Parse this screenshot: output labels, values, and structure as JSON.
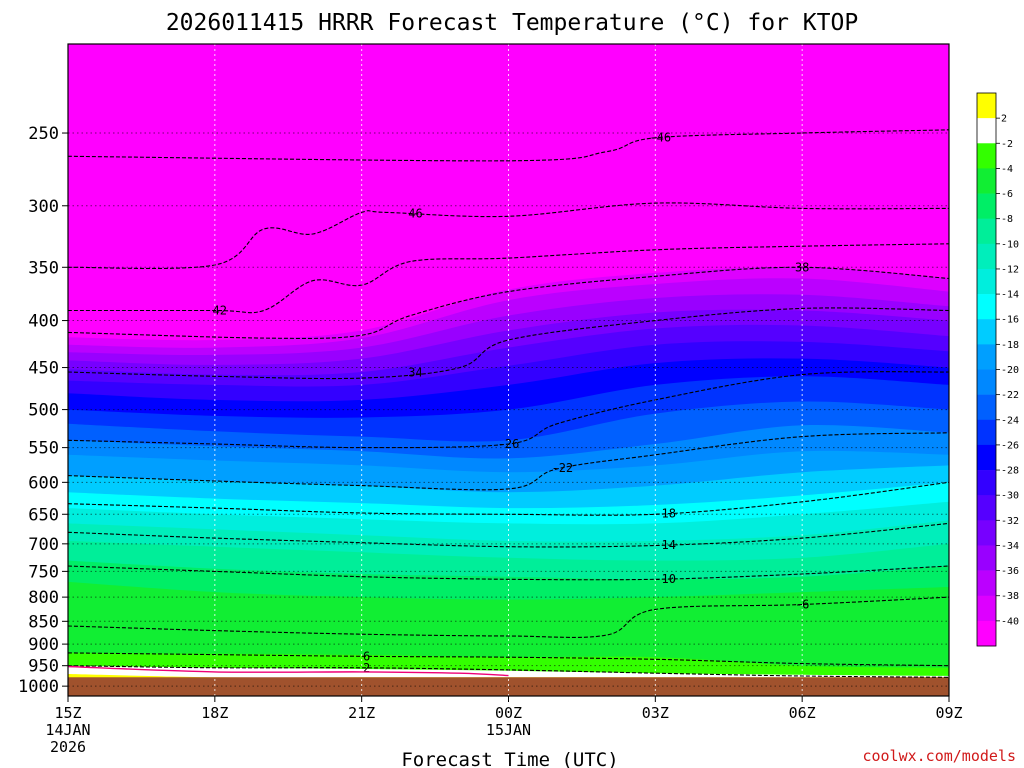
{
  "chart_data": {
    "type": "heatmap",
    "title": "2026011415 HRRR Forecast Temperature (°C) for KTOP",
    "xlabel": "Forecast Time (UTC)",
    "ylabel": "",
    "credit": "coolwx.com/models",
    "credit_color": "#d11a1a",
    "x_ticks": [
      {
        "hour": 0,
        "lines": [
          "15Z",
          "14JAN",
          "2026"
        ]
      },
      {
        "hour": 3,
        "lines": [
          "18Z"
        ]
      },
      {
        "hour": 6,
        "lines": [
          "21Z"
        ]
      },
      {
        "hour": 9,
        "lines": [
          "00Z",
          "15JAN"
        ]
      },
      {
        "hour": 12,
        "lines": [
          "03Z"
        ]
      },
      {
        "hour": 15,
        "lines": [
          "06Z"
        ]
      },
      {
        "hour": 18,
        "lines": [
          "09Z"
        ]
      }
    ],
    "xlim": [
      0,
      18
    ],
    "y_ticks": [
      250,
      300,
      350,
      400,
      450,
      500,
      550,
      600,
      650,
      700,
      750,
      800,
      850,
      900,
      950,
      1000
    ],
    "ylim_hPa": [
      200,
      1025
    ],
    "ground_pressure_hPa": 978,
    "ground_color": "#a0522d",
    "colorbar": {
      "labels": [
        "2",
        "-2",
        "-4",
        "-6",
        "-8",
        "-10",
        "-12",
        "-14",
        "-16",
        "-18",
        "-20",
        "-22",
        "-24",
        "-26",
        "-28",
        "-30",
        "-32",
        "-34",
        "-36",
        "-38",
        "-40"
      ],
      "colors": [
        "#ffff00",
        "#ffffff",
        "#33ff00",
        "#11ee33",
        "#00ee66",
        "#00ee99",
        "#00eebb",
        "#00eedd",
        "#00ffff",
        "#00ccff",
        "#009fff",
        "#0088ff",
        "#0060ff",
        "#0033ff",
        "#0000ff",
        "#3300ff",
        "#5500ff",
        "#7700ff",
        "#9900ff",
        "#bb00ff",
        "#dd00ff",
        "#ff00ff"
      ]
    },
    "fill_levels": [
      {
        "temp": -44,
        "color": "#ff00ff",
        "p": [
          200,
          200,
          200,
          200,
          200,
          200,
          200
        ]
      },
      {
        "temp": -40,
        "color": "#dd00ff",
        "p": [
          417,
          420,
          410,
          370,
          355,
          350,
          360
        ]
      },
      {
        "temp": -38,
        "color": "#bb00ff",
        "p": [
          425,
          428,
          418,
          380,
          365,
          360,
          372
        ]
      },
      {
        "temp": -36,
        "color": "#9900ff",
        "p": [
          433,
          436,
          428,
          395,
          378,
          375,
          386
        ]
      },
      {
        "temp": -34,
        "color": "#7700ff",
        "p": [
          442,
          447,
          440,
          410,
          392,
          390,
          400
        ]
      },
      {
        "temp": -32,
        "color": "#5500ff",
        "p": [
          452,
          458,
          455,
          428,
          408,
          405,
          416
        ]
      },
      {
        "temp": -30,
        "color": "#3300ff",
        "p": [
          465,
          470,
          470,
          448,
          425,
          422,
          432
        ]
      },
      {
        "temp": -28,
        "color": "#0000ff",
        "p": [
          480,
          488,
          488,
          470,
          445,
          440,
          450
        ]
      },
      {
        "temp": -26,
        "color": "#0033ff",
        "p": [
          500,
          508,
          510,
          500,
          470,
          460,
          470
        ]
      },
      {
        "temp": -24,
        "color": "#0060ff",
        "p": [
          518,
          528,
          535,
          540,
          505,
          490,
          500
        ]
      },
      {
        "temp": -22,
        "color": "#0088ff",
        "p": [
          540,
          548,
          555,
          565,
          545,
          520,
          530
        ]
      },
      {
        "temp": -20,
        "color": "#009fff",
        "p": [
          560,
          568,
          575,
          585,
          575,
          555,
          560
        ]
      },
      {
        "temp": -18,
        "color": "#00ccff",
        "p": [
          590,
          598,
          605,
          615,
          605,
          585,
          575
        ]
      },
      {
        "temp": -16,
        "color": "#00ffff",
        "p": [
          615,
          625,
          632,
          640,
          635,
          620,
          600
        ]
      },
      {
        "temp": -14,
        "color": "#00eedd",
        "p": [
          640,
          650,
          658,
          665,
          665,
          650,
          630
        ]
      },
      {
        "temp": -12,
        "color": "#00eebb",
        "p": [
          665,
          675,
          685,
          695,
          695,
          685,
          660
        ]
      },
      {
        "temp": -10,
        "color": "#00ee99",
        "p": [
          695,
          705,
          715,
          725,
          730,
          725,
          700
        ]
      },
      {
        "temp": -8,
        "color": "#00ee66",
        "p": [
          730,
          745,
          755,
          760,
          765,
          760,
          740
        ]
      },
      {
        "temp": -6,
        "color": "#11ee33",
        "p": [
          770,
          790,
          800,
          805,
          800,
          790,
          780
        ]
      },
      {
        "temp": -4,
        "color": "#33ff00",
        "p": [
          920,
          922,
          925,
          930,
          930,
          950,
          955
        ]
      },
      {
        "temp": -2,
        "color": "#ffffff",
        "p": [
          950,
          955,
          958,
          962,
          968,
          972,
          975
        ]
      },
      {
        "temp": 0,
        "color": "#ffff00",
        "p": [
          970,
          978,
          978,
          978,
          978,
          978,
          978
        ]
      }
    ],
    "contour_lines": [
      {
        "label": "46",
        "label_hour": 7.1,
        "hours": [
          0,
          3,
          4,
          5,
          6,
          6.5,
          9,
          12,
          15,
          18
        ],
        "p": [
          350,
          348,
          318,
          322,
          305,
          305,
          308,
          298,
          302,
          302
        ]
      },
      {
        "label": "-46",
        "label_hour": 12.1,
        "hours": [
          0,
          9,
          11,
          12,
          15,
          18
        ],
        "p": [
          265,
          268,
          262,
          253,
          250,
          248
        ]
      },
      {
        "label": "42",
        "label_hour": 3.1,
        "hours": [
          0,
          3,
          4,
          5,
          6,
          7,
          9,
          12,
          15,
          18
        ],
        "p": [
          390,
          390,
          390,
          362,
          366,
          345,
          342,
          335,
          332,
          330
        ]
      },
      {
        "label": "38",
        "label_hour": 15,
        "hours": [
          0,
          4,
          6,
          7,
          9,
          12,
          15,
          18
        ],
        "p": [
          412,
          418,
          415,
          395,
          372,
          358,
          350,
          360
        ]
      },
      {
        "label": "34",
        "label_hour": 7.1,
        "hours": [
          0,
          3,
          6,
          8,
          9,
          12,
          15,
          18
        ],
        "p": [
          455,
          460,
          462,
          450,
          420,
          400,
          388,
          390
        ]
      },
      {
        "label": "-26",
        "label_hour": 9.0,
        "hours": [
          0,
          3,
          6,
          9,
          10,
          12,
          15,
          18
        ],
        "p": [
          540,
          545,
          550,
          545,
          518,
          488,
          458,
          455
        ]
      },
      {
        "label": "-22",
        "label_hour": 10.1,
        "hours": [
          0,
          3,
          6,
          9,
          10,
          12,
          15,
          18
        ],
        "p": [
          590,
          598,
          605,
          610,
          580,
          560,
          535,
          530
        ]
      },
      {
        "label": "-18",
        "label_hour": 12.2,
        "hours": [
          0,
          3,
          6,
          9,
          12,
          15,
          18
        ],
        "p": [
          633,
          640,
          648,
          650,
          650,
          630,
          600
        ]
      },
      {
        "label": "-14",
        "label_hour": 12.2,
        "hours": [
          0,
          3,
          6,
          9,
          12,
          15,
          18
        ],
        "p": [
          680,
          690,
          698,
          705,
          703,
          690,
          665
        ]
      },
      {
        "label": "-10",
        "label_hour": 12.2,
        "hours": [
          0,
          3,
          6,
          9,
          12,
          15,
          18
        ],
        "p": [
          740,
          750,
          760,
          765,
          765,
          755,
          740
        ]
      },
      {
        "label": "-6",
        "label_hour": 15,
        "hours": [
          0,
          3,
          6,
          9,
          11,
          12,
          15,
          18
        ],
        "p": [
          860,
          870,
          878,
          882,
          880,
          825,
          815,
          800
        ]
      },
      {
        "label": "6",
        "label_hour": 6.1,
        "hours": [
          0,
          3,
          6,
          9,
          12,
          15,
          18
        ],
        "p": [
          920,
          924,
          928,
          930,
          935,
          945,
          950
        ]
      },
      {
        "label": "2",
        "label_hour": 6.1,
        "hours": [
          0,
          3,
          6,
          9,
          12,
          15,
          18
        ],
        "p": [
          950,
          955,
          955,
          960,
          968,
          975,
          978
        ]
      }
    ],
    "freezing_line": {
      "hours": [
        0,
        3,
        6,
        8,
        9
      ],
      "p": [
        952,
        965,
        965,
        968,
        974
      ]
    }
  }
}
